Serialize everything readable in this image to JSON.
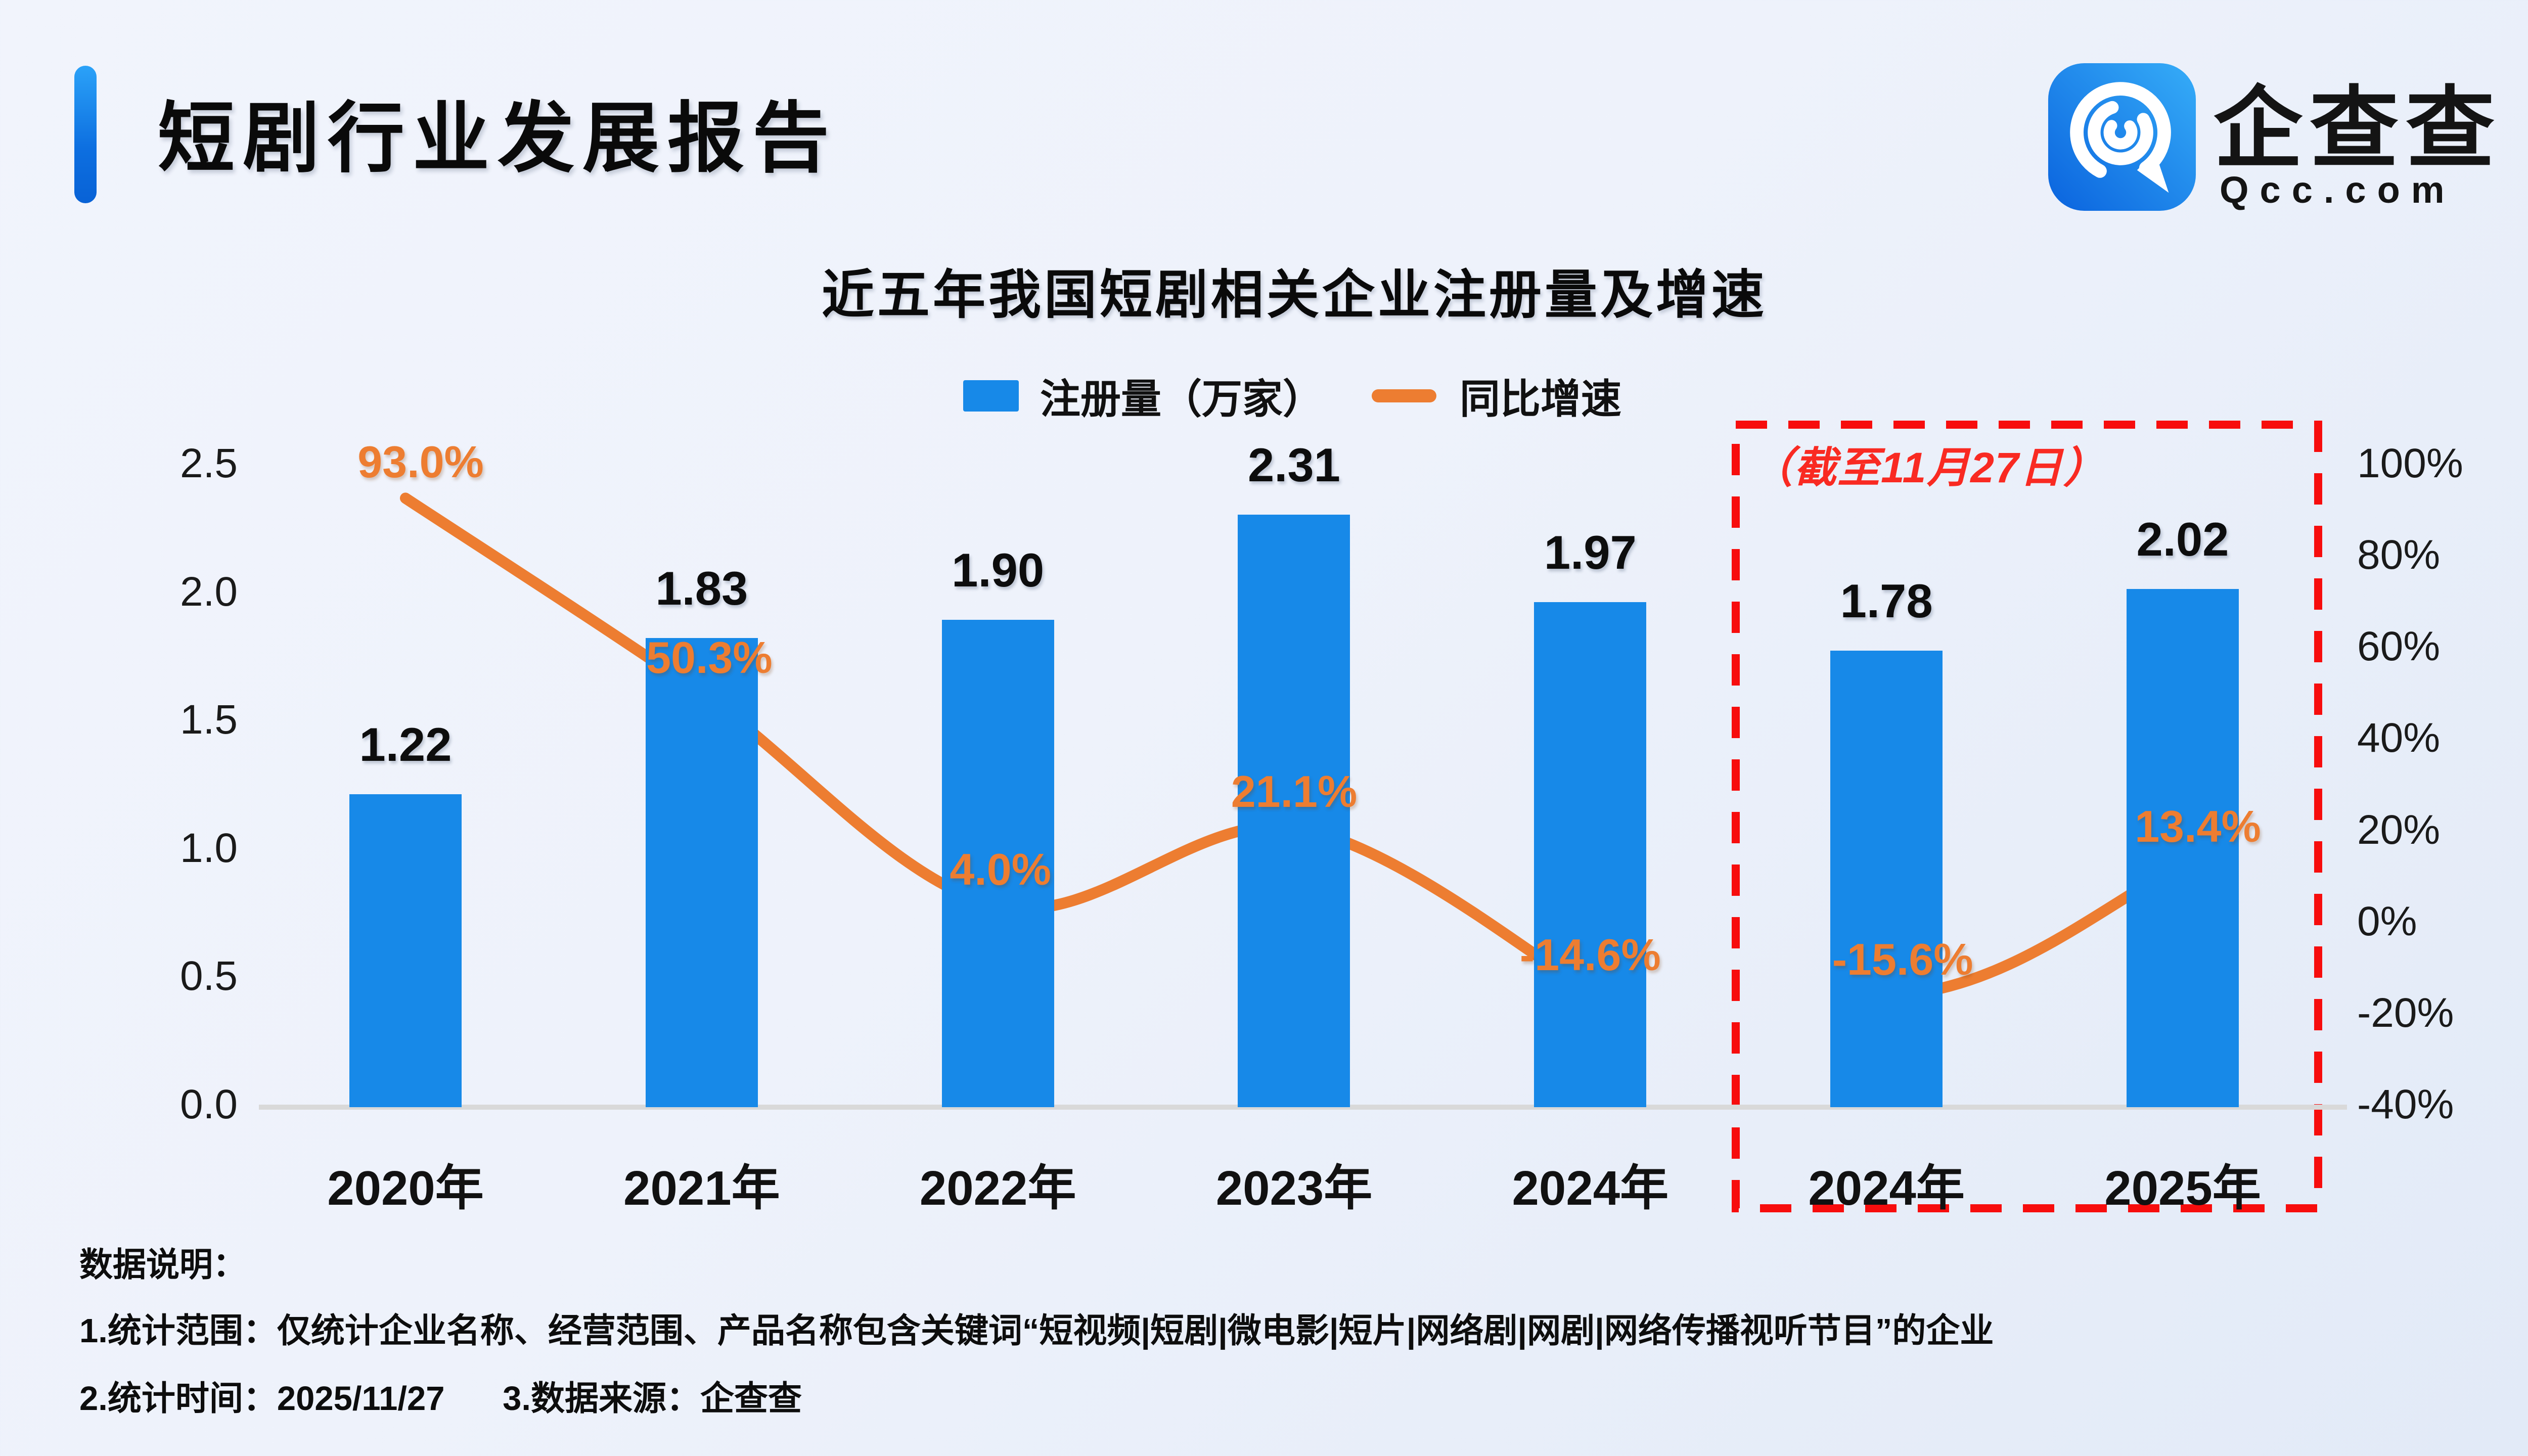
{
  "header": {
    "title": "短剧行业发展报告"
  },
  "logo": {
    "brand": "企查查",
    "domain": "Qcc.com",
    "icon_gradient_top": "#36adf8",
    "icon_gradient_bottom": "#0a63de"
  },
  "chart": {
    "title": "近五年我国短剧相关企业注册量及增速",
    "legend": [
      {
        "label": "注册量（万家）",
        "swatch": "bar",
        "color": "#1789e8"
      },
      {
        "label": "同比增速",
        "swatch": "line",
        "color": "#ed7d31"
      }
    ],
    "annotation": {
      "text": "（截至11月27日）",
      "color": "#f92a22"
    }
  },
  "chart_data": {
    "type": "bar+line",
    "title": "近五年我国短剧相关企业注册量及增速",
    "categories": [
      "2020年",
      "2021年",
      "2022年",
      "2023年",
      "2024年",
      "2024年",
      "2025年"
    ],
    "series": [
      {
        "name": "注册量（万家）",
        "type": "bar",
        "values": [
          1.22,
          1.83,
          1.9,
          2.31,
          1.97,
          1.78,
          2.02
        ],
        "value_labels": [
          "1.22",
          "1.83",
          "1.90",
          "2.31",
          "1.97",
          "1.78",
          "2.02"
        ],
        "color": "#1789e8"
      },
      {
        "name": "同比增速",
        "type": "line",
        "values": [
          93.0,
          50.3,
          4.0,
          21.1,
          -14.6,
          -15.6,
          13.4
        ],
        "value_labels": [
          "93.0%",
          "50.3%",
          "4.0%",
          "21.1%",
          "-14.6%",
          "-15.6%",
          "13.4%"
        ],
        "color": "#ed7d31",
        "segments": [
          [
            0,
            4
          ],
          [
            5,
            6
          ]
        ]
      }
    ],
    "left_axis": {
      "ticks": [
        "2.5",
        "2.0",
        "1.5",
        "1.0",
        "0.5",
        "0.0"
      ],
      "min": 0,
      "max": 2.5
    },
    "right_axis": {
      "ticks": [
        "100%",
        "80%",
        "60%",
        "40%",
        "20%",
        "0%",
        "-20%",
        "-40%"
      ],
      "min": -40,
      "max": 100
    },
    "highlight_box": {
      "text": "（截至11月27日）",
      "covers": [
        "2024年",
        "2025年"
      ],
      "color": "#f70d0d"
    },
    "grid": false,
    "legend_position": "top-center"
  },
  "footer": {
    "heading": "数据说明：",
    "note1": "1.统计范围：仅统计企业名称、经营范围、产品名称包含关键词“短视频|短剧|微电影|短片|网络剧|网剧|网络传播视听节目”的企业",
    "note2_time": "2.统计时间：2025/11/27",
    "note3_source": "3.数据来源：企查查"
  }
}
